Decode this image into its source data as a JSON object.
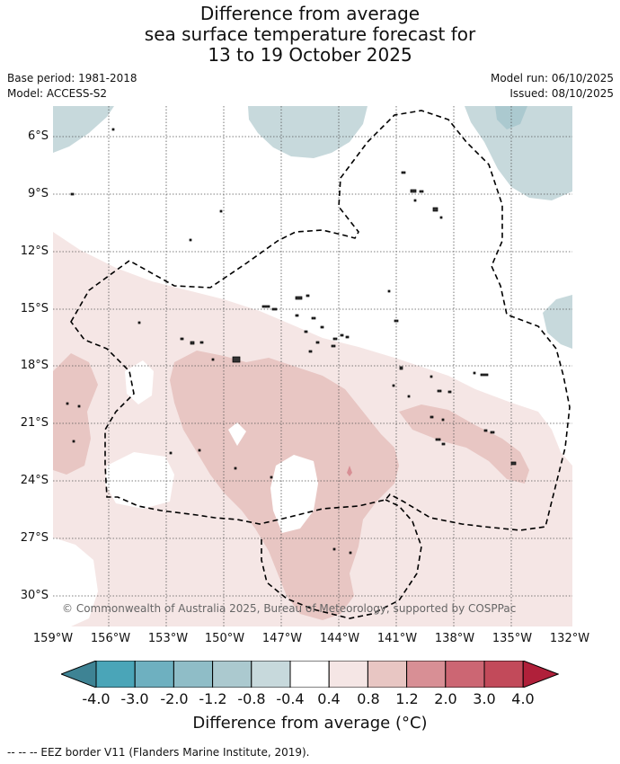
{
  "header": {
    "title_line1": "Difference from average",
    "title_line2": "sea surface temperature forecast for",
    "title_line3": "13 to 19 October 2025",
    "base_period": "Base period: 1981-2018",
    "model": "Model: ACCESS-S2",
    "model_run": "Model run: 06/10/2025",
    "issued": "Issued: 08/10/2025"
  },
  "map": {
    "lat_ticks": [
      "6°S",
      "9°S",
      "12°S",
      "15°S",
      "18°S",
      "21°S",
      "24°S",
      "27°S",
      "30°S"
    ],
    "lon_ticks": [
      "159°W",
      "156°W",
      "153°W",
      "150°W",
      "147°W",
      "144°W",
      "141°W",
      "138°W",
      "135°W",
      "132°W"
    ],
    "copyright": "© Commonwealth of Australia 2025, Bureau of Meteorology, supported by COSPPac"
  },
  "colorbar": {
    "labels": [
      "-4.0",
      "-3.0",
      "-2.0",
      "-1.2",
      "-0.8",
      "-0.4",
      "0.4",
      "0.8",
      "1.2",
      "2.0",
      "3.0",
      "4.0"
    ],
    "colors": [
      "#3e8394",
      "#4aa5b8",
      "#6eb0c0",
      "#8fbdc7",
      "#abc9cf",
      "#c7d9dc",
      "#ffffff",
      "#f5e6e5",
      "#e8c6c3",
      "#d88f95",
      "#cc6673",
      "#c24a5a",
      "#b0203a"
    ],
    "title": "Difference from average (°C)"
  },
  "footnote": "-- -- -- EEZ border V11 (Flanders Marine Institute, 2019)."
}
